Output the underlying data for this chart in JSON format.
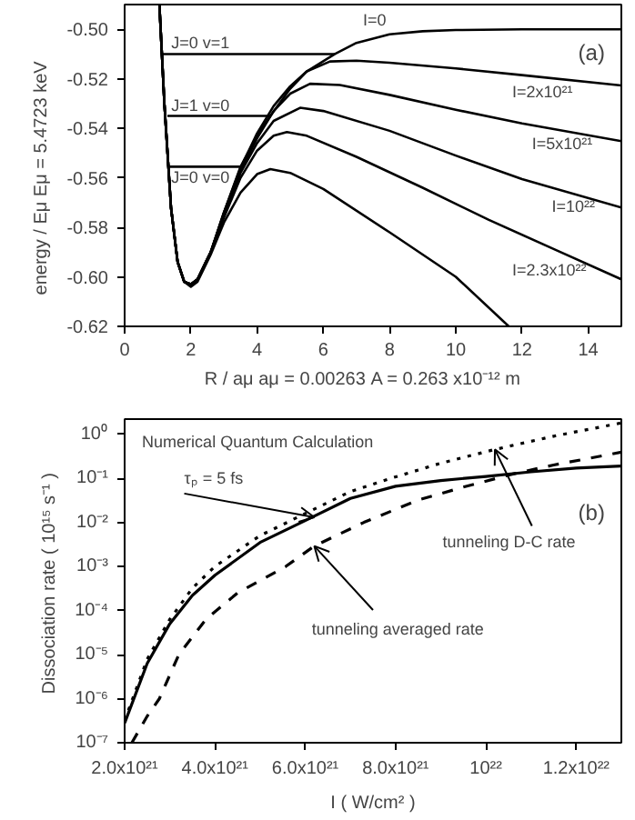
{
  "chart_data": [
    {
      "type": "line",
      "xlabel": "R / aμ     aμ = 0.00263 A = 0.263 x10⁻¹² m",
      "ylabel": "energy / Eμ      Eμ = 5.4723 keV",
      "xlim": [
        0,
        15
      ],
      "ylim": [
        -0.62,
        -0.49
      ],
      "xticks": [
        0,
        2,
        4,
        6,
        8,
        10,
        12,
        14
      ],
      "yticks": [
        {
          "value": -0.62,
          "label": "-0.62"
        },
        {
          "value": -0.6,
          "label": "-0.60"
        },
        {
          "value": -0.58,
          "label": "-0.58"
        },
        {
          "value": -0.56,
          "label": "-0.56"
        },
        {
          "value": -0.54,
          "label": "-0.54"
        },
        {
          "value": -0.52,
          "label": "-0.52"
        },
        {
          "value": -0.5,
          "label": "-0.50"
        }
      ],
      "series": [
        {
          "color": "#000000",
          "line_style": "solid",
          "x": [
            1.05,
            1.2,
            1.4,
            1.6,
            1.8,
            2.0,
            2.2,
            2.6,
            3.0,
            3.5,
            4.0,
            4.4,
            5.0,
            5.5,
            6.35,
            7,
            8,
            9,
            10,
            12,
            15
          ],
          "values": [
            -0.49,
            -0.53,
            -0.572,
            -0.594,
            -0.602,
            -0.603,
            -0.601,
            -0.59,
            -0.574,
            -0.5555,
            -0.543,
            -0.535,
            -0.524,
            -0.517,
            -0.51,
            -0.5055,
            -0.502,
            -0.5008,
            -0.5003,
            -0.5,
            -0.5
          ]
        },
        {
          "color": "#000000",
          "line_style": "solid",
          "x": [
            1.05,
            1.2,
            1.4,
            1.6,
            1.8,
            2.0,
            2.2,
            2.6,
            3.0,
            3.5,
            4.0,
            4.5,
            5.0,
            5.5,
            6.2,
            7,
            8,
            10,
            12,
            15
          ],
          "values": [
            -0.49,
            -0.53,
            -0.572,
            -0.594,
            -0.602,
            -0.603,
            -0.601,
            -0.59,
            -0.574,
            -0.556,
            -0.542,
            -0.531,
            -0.523,
            -0.517,
            -0.513,
            -0.5127,
            -0.5135,
            -0.5158,
            -0.5185,
            -0.5227
          ]
        },
        {
          "color": "#000000",
          "line_style": "solid",
          "x": [
            1.05,
            1.2,
            1.4,
            1.6,
            1.8,
            2.0,
            2.2,
            2.6,
            3.0,
            3.5,
            4.0,
            4.5,
            5.0,
            5.6,
            6.5,
            8,
            10,
            12,
            15
          ],
          "values": [
            -0.49,
            -0.53,
            -0.572,
            -0.594,
            -0.602,
            -0.603,
            -0.601,
            -0.59,
            -0.574,
            -0.557,
            -0.544,
            -0.533,
            -0.526,
            -0.522,
            -0.5225,
            -0.5265,
            -0.5325,
            -0.538,
            -0.5452
          ]
        },
        {
          "color": "#000000",
          "line_style": "solid",
          "x": [
            1.05,
            1.2,
            1.4,
            1.6,
            1.8,
            2.0,
            2.2,
            2.6,
            3.0,
            3.5,
            4.0,
            4.5,
            5.3,
            6,
            8,
            10,
            12,
            15
          ],
          "values": [
            -0.49,
            -0.53,
            -0.572,
            -0.594,
            -0.602,
            -0.603,
            -0.601,
            -0.59,
            -0.575,
            -0.558,
            -0.546,
            -0.537,
            -0.5317,
            -0.533,
            -0.541,
            -0.551,
            -0.5605,
            -0.572
          ]
        },
        {
          "color": "#000000",
          "line_style": "solid",
          "x": [
            1.05,
            1.2,
            1.4,
            1.6,
            1.8,
            2.0,
            2.2,
            2.6,
            3.0,
            3.5,
            4.0,
            4.5,
            4.9,
            5.5,
            7,
            9,
            11,
            13,
            15
          ],
          "values": [
            -0.49,
            -0.53,
            -0.572,
            -0.594,
            -0.602,
            -0.603,
            -0.601,
            -0.59,
            -0.576,
            -0.56,
            -0.549,
            -0.543,
            -0.5415,
            -0.543,
            -0.5515,
            -0.564,
            -0.577,
            -0.589,
            -0.601
          ]
        },
        {
          "color": "#000000",
          "line_style": "solid",
          "x": [
            1.05,
            1.2,
            1.4,
            1.6,
            1.8,
            2.0,
            2.2,
            2.6,
            3.0,
            3.5,
            4.0,
            4.4,
            5,
            6,
            8,
            10,
            11.6
          ],
          "values": [
            -0.49,
            -0.53,
            -0.572,
            -0.594,
            -0.602,
            -0.604,
            -0.602,
            -0.591,
            -0.578,
            -0.566,
            -0.5585,
            -0.5565,
            -0.558,
            -0.5645,
            -0.582,
            -0.6,
            -0.62
          ]
        },
        {
          "color": "#000000",
          "line_style": "solid",
          "x": [
            1.11,
            6.35
          ],
          "values": [
            -0.51,
            -0.51
          ]
        },
        {
          "color": "#000000",
          "line_style": "solid",
          "x": [
            1.29,
            4.4
          ],
          "values": [
            -0.535,
            -0.535
          ]
        },
        {
          "color": "#000000",
          "line_style": "solid",
          "x": [
            1.3,
            3.5
          ],
          "values": [
            -0.5555,
            -0.5555
          ]
        }
      ],
      "annotations": [
        {
          "text": "J=0  v=1",
          "x": 1.3,
          "y": -0.51
        },
        {
          "text": "J=1   v=0",
          "x": 1.3,
          "y": -0.535
        },
        {
          "text": "J=0 v=0",
          "x": 1.3,
          "y": -0.5555
        },
        {
          "text": "I=0",
          "x": 7.2,
          "y": -0.5015
        },
        {
          "text": "I=2x10²¹",
          "x": 11.7,
          "y": -0.518
        },
        {
          "text": "I=5x10²¹",
          "x": 12.3,
          "y": -0.539
        },
        {
          "text": "I=10²²",
          "x": 12.9,
          "y": -0.564
        },
        {
          "text": "I=2.3x10²²",
          "x": 11.7,
          "y": -0.584
        },
        "(a)"
      ]
    },
    {
      "type": "line",
      "log": "y",
      "xlabel": "I ( W/cm² )",
      "ylabel": "Dissociation rate  ( 10¹⁵ s⁻¹ )",
      "xlim": [
        2e+21,
        1.3e+22
      ],
      "ylim": [
        1e-07,
        2.2
      ],
      "xticks": [
        {
          "value": 2e+21,
          "label": "2.0x10²¹"
        },
        {
          "value": 4e+21,
          "label": "4.0x10²¹"
        },
        {
          "value": 6e+21,
          "label": "6.0x10²¹"
        },
        {
          "value": 8e+21,
          "label": "8.0x10²¹"
        },
        {
          "value": 1e+22,
          "label": "10²²"
        },
        {
          "value": 1.2e+22,
          "label": "1.2x10²²"
        }
      ],
      "yticks": [
        {
          "value": 1e-07,
          "label": "10⁻⁷"
        },
        {
          "value": 1e-06,
          "label": "10⁻⁶"
        },
        {
          "value": 1e-05,
          "label": "10⁻⁵"
        },
        {
          "value": 0.0001,
          "label": "10⁻⁴"
        },
        {
          "value": 0.001,
          "label": "10⁻³"
        },
        {
          "value": 0.01,
          "label": "10⁻²"
        },
        {
          "value": 0.1,
          "label": "10⁻¹"
        },
        {
          "value": 1,
          "label": "10⁰"
        }
      ],
      "series": [
        {
          "color": "#000000",
          "line_style": "solid",
          "x": [
            2e+21,
            2.5e+21,
            3e+21,
            3.5e+21,
            4e+21,
            5e+21,
            6e+21,
            7e+21,
            8e+21,
            9e+21,
            1e+22,
            1.1e+22,
            1.2e+22,
            1.3e+22
          ],
          "values": [
            2.8e-07,
            6.3e-06,
            5e-05,
            0.00022,
            0.00063,
            0.0035,
            0.011,
            0.035,
            0.066,
            0.089,
            0.11,
            0.14,
            0.17,
            0.19
          ]
        },
        {
          "color": "#000000",
          "line_style": "dotted",
          "x": [
            2e+21,
            2.5e+21,
            3e+21,
            3.5e+21,
            4e+21,
            5e+21,
            5.6e+21,
            7e+21,
            7.9e+21,
            9e+21,
            1.02e+22,
            1.15e+22,
            1.3e+22
          ],
          "values": [
            3.2e-07,
            7.9e-06,
            6.3e-05,
            0.00032,
            0.001,
            0.005,
            0.01,
            0.05,
            0.1,
            0.22,
            0.45,
            0.9,
            1.8
          ]
        },
        {
          "color": "#000000",
          "line_style": "dashed",
          "x": [
            2.16e+21,
            2.5e+21,
            2.77e+21,
            3.2e+21,
            3.8e+21,
            4.5e+21,
            5.57e+21,
            6.2e+21,
            7.3e+21,
            8.5e+21,
            9.5e+21,
            1.06e+22,
            1.15e+22,
            1.3e+22
          ],
          "values": [
            1e-07,
            4e-07,
            1e-06,
            1e-05,
            6.3e-05,
            0.00025,
            0.001,
            0.0029,
            0.01,
            0.032,
            0.063,
            0.125,
            0.2,
            0.39
          ]
        }
      ],
      "annotations": [
        "Numerical Quantum Calculation",
        {
          "text": "τₚ = 5 fs",
          "x": 6.2e+21,
          "y": 0.013
        },
        {
          "text": "tunneling D-C rate",
          "x": 1.02e+22,
          "y": 0.45
        },
        {
          "text": "tunneling averaged rate",
          "x": 6.2e+21,
          "y": 0.0029
        },
        "(b)"
      ]
    }
  ]
}
